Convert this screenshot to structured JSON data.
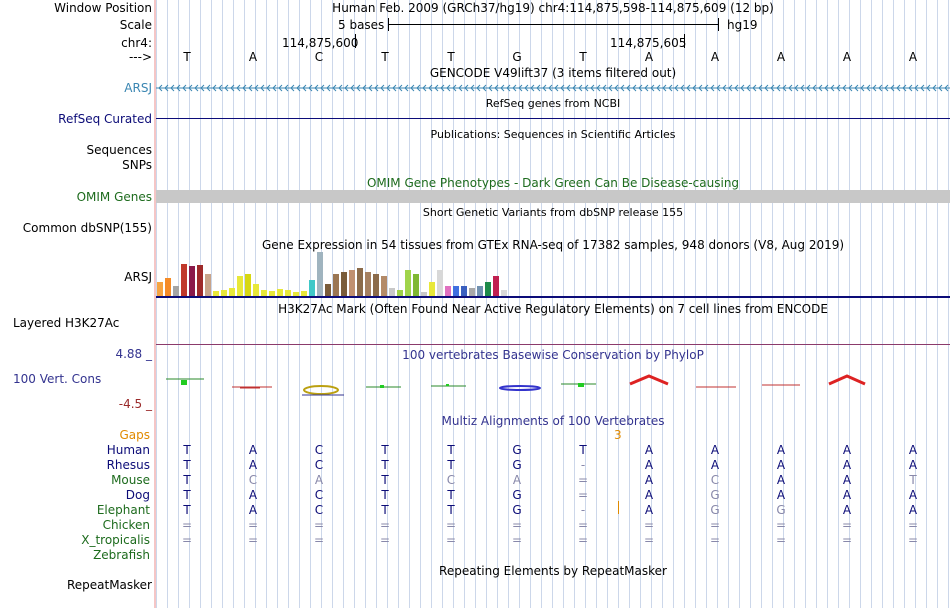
{
  "header": {
    "window_position_label": "Window Position",
    "window_position_value": "Human Feb. 2009 (GRCh37/hg19)   chr4:114,875,598-114,875,609 (12 bp)",
    "scale_label": "Scale",
    "scale_value": "5 bases",
    "scale_db": "hg19",
    "chrom_label": "chr4:",
    "coord_1": "114,875,600",
    "coord_2": "114,875,605",
    "strand_label": "--->"
  },
  "sequence": [
    "T",
    "A",
    "C",
    "T",
    "T",
    "G",
    "T",
    "A",
    "A",
    "A",
    "A",
    "A"
  ],
  "tracks": {
    "gencode": {
      "label": "ARSJ",
      "title": "GENCODE V49lift37 (3 items filtered out)",
      "color": "#3a86b2"
    },
    "refseq": {
      "label": "RefSeq Curated",
      "title": "RefSeq genes from NCBI",
      "color": "#0c0c78"
    },
    "publications": {
      "label": "Sequences",
      "title": "Publications: Sequences in Scientific Articles"
    },
    "snps": {
      "label": "SNPs"
    },
    "omim": {
      "label": "OMIM Genes",
      "title": "OMIM Gene Phenotypes - Dark Green Can Be Disease-causing",
      "color": "#1d6b1d"
    },
    "dbsnp": {
      "label": "Common dbSNP(155)",
      "title": "Short Genetic Variants from dbSNP release 155"
    },
    "gtex": {
      "label": "ARSJ",
      "title": "Gene Expression in 54 tissues from GTEx RNA-seq of 17382 samples, 948 donors (V8, Aug 2019)"
    },
    "h3k27ac": {
      "label": "Layered H3K27Ac",
      "title": "H3K27Ac Mark (Often Found Near Active Regulatory Elements) on 7 cell lines from ENCODE"
    },
    "cons": {
      "label": "100 Vert. Cons",
      "title": "100 vertebrates Basewise Conservation by PhyloP",
      "max": "4.88 _",
      "min": "-4.5 _",
      "color": "#33338f"
    },
    "multiz": {
      "title": "Multiz Alignments of 100 Vertebrates",
      "gaps_label": "Gaps",
      "gap_count": "3"
    },
    "repeatmasker": {
      "label": "RepeatMasker",
      "title": "Repeating Elements by RepeatMasker"
    }
  },
  "gtex_values": [
    {
      "h": 14,
      "c": "#f6a341"
    },
    {
      "h": 18,
      "c": "#f58b27"
    },
    {
      "h": 10,
      "c": "#a5a5a5"
    },
    {
      "h": 32,
      "c": "#c0392b"
    },
    {
      "h": 30,
      "c": "#8b1a4a"
    },
    {
      "h": 31,
      "c": "#9e2a2a"
    },
    {
      "h": 22,
      "c": "#c8a48a"
    },
    {
      "h": 5,
      "c": "#e8e83a"
    },
    {
      "h": 6,
      "c": "#e8e83a"
    },
    {
      "h": 8,
      "c": "#e8e83a"
    },
    {
      "h": 20,
      "c": "#e8e83a"
    },
    {
      "h": 22,
      "c": "#d7d712"
    },
    {
      "h": 12,
      "c": "#e8e83a"
    },
    {
      "h": 6,
      "c": "#e8e83a"
    },
    {
      "h": 5,
      "c": "#e8e83a"
    },
    {
      "h": 7,
      "c": "#e8e83a"
    },
    {
      "h": 6,
      "c": "#e8e83a"
    },
    {
      "h": 4,
      "c": "#e8e83a"
    },
    {
      "h": 5,
      "c": "#e8e83a"
    },
    {
      "h": 16,
      "c": "#40c8c8"
    },
    {
      "h": 44,
      "c": "#a0b4bf"
    },
    {
      "h": 12,
      "c": "#7a5c3a"
    },
    {
      "h": 22,
      "c": "#9b7653"
    },
    {
      "h": 24,
      "c": "#7a5c3a"
    },
    {
      "h": 26,
      "c": "#c09070"
    },
    {
      "h": 28,
      "c": "#8b6b4a"
    },
    {
      "h": 24,
      "c": "#a58060"
    },
    {
      "h": 22,
      "c": "#8b6b4a"
    },
    {
      "h": 20,
      "c": "#b38a68"
    },
    {
      "h": 8,
      "c": "#c8c8c8"
    },
    {
      "h": 6,
      "c": "#9ed04a"
    },
    {
      "h": 26,
      "c": "#a0d44a"
    },
    {
      "h": 22,
      "c": "#80b832"
    },
    {
      "h": 4,
      "c": "#c8c8c8"
    },
    {
      "h": 14,
      "c": "#e8e83a"
    },
    {
      "h": 26,
      "c": "#d8d8d8"
    },
    {
      "h": 10,
      "c": "#e070c0"
    },
    {
      "h": 10,
      "c": "#4070e0"
    },
    {
      "h": 10,
      "c": "#3a5fbf"
    },
    {
      "h": 8,
      "c": "#a8a8a8"
    },
    {
      "h": 10,
      "c": "#7090b0"
    },
    {
      "h": 14,
      "c": "#1e8a4a"
    },
    {
      "h": 20,
      "c": "#c02050"
    },
    {
      "h": 6,
      "c": "#d8d8d8"
    }
  ],
  "species": [
    {
      "name": "Human",
      "color": "#0c0c78",
      "seq": [
        "T",
        "A",
        "C",
        "T",
        "T",
        "G",
        "T",
        "A",
        "A",
        "A",
        "A",
        "A"
      ]
    },
    {
      "name": "Rhesus",
      "color": "#0c0c78",
      "seq": [
        "T",
        "A",
        "C",
        "T",
        "T",
        "G",
        "-",
        "A",
        "A",
        "A",
        "A",
        "A"
      ]
    },
    {
      "name": "Mouse",
      "color": "#1d6b1d",
      "seq": [
        "T",
        "C",
        "A",
        "T",
        "C",
        "A",
        "=",
        "A",
        "C",
        "A",
        "A",
        "T"
      ]
    },
    {
      "name": "Dog",
      "color": "#0c0c78",
      "seq": [
        "T",
        "A",
        "C",
        "T",
        "T",
        "G",
        "=",
        "A",
        "G",
        "A",
        "A",
        "A"
      ]
    },
    {
      "name": "Elephant",
      "color": "#1d6b1d",
      "seq": [
        "T",
        "A",
        "C",
        "T",
        "T",
        "G",
        "-",
        "A",
        "G",
        "G",
        "A",
        "A"
      ]
    },
    {
      "name": "Chicken",
      "color": "#1d6b1d",
      "seq": [
        "=",
        "=",
        "=",
        "=",
        "=",
        "=",
        "=",
        "=",
        "=",
        "=",
        "=",
        "="
      ]
    },
    {
      "name": "X_tropicalis",
      "color": "#1d6b1d",
      "seq": [
        "=",
        "=",
        "=",
        "=",
        "=",
        "=",
        "=",
        "=",
        "=",
        "=",
        "=",
        "="
      ]
    },
    {
      "name": "Zebrafish",
      "color": "#1d6b1d",
      "seq": [
        "",
        "",
        "",
        "",
        "",
        "",
        "",
        "",
        "",
        "",
        "",
        ""
      ]
    }
  ]
}
